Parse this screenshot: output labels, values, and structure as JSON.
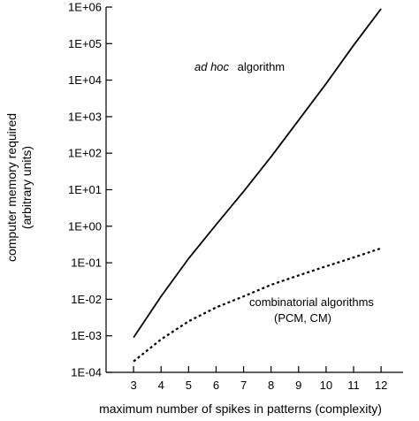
{
  "chart_data": {
    "type": "line",
    "xlabel": "maximum number of spikes in patterns (complexity)",
    "ylabel_lines": [
      "computer memory required",
      "(arbitrary units)"
    ],
    "x_ticks": [
      3,
      4,
      5,
      6,
      7,
      8,
      9,
      10,
      11,
      12
    ],
    "y_ticks": [
      "1E+06",
      "1E+05",
      "1E+04",
      "1E+03",
      "1E+02",
      "1E+01",
      "1E+00",
      "1E-01",
      "1E-02",
      "1E-03",
      "1E-04"
    ],
    "xlim": [
      2,
      12.8
    ],
    "ylim": [
      0.0001,
      1000000
    ],
    "y_scale": "log",
    "grid": false,
    "series": [
      {
        "label_italic": "ad hoc",
        "label_rest": "algorithm",
        "style": "solid",
        "x": [
          3,
          4,
          5,
          6,
          7,
          8,
          9,
          10,
          11,
          12
        ],
        "y": [
          0.0009,
          0.012,
          0.13,
          1.1,
          9,
          80,
          800,
          8000,
          90000,
          900000
        ]
      },
      {
        "label_lines": [
          "combinatorial algorithms",
          "(PCM, CM)"
        ],
        "style": "dotted",
        "x": [
          3,
          4,
          5,
          6,
          7,
          8,
          9,
          10,
          11,
          12
        ],
        "y": [
          0.0002,
          0.0008,
          0.0025,
          0.006,
          0.012,
          0.025,
          0.045,
          0.08,
          0.14,
          0.25
        ]
      }
    ]
  }
}
